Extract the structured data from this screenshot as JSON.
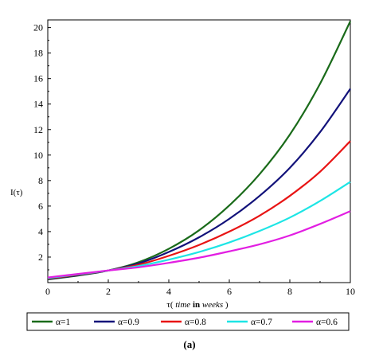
{
  "chart_data": {
    "type": "line",
    "ylabel": "I(τ)",
    "xlabel_parts": [
      "τ( ",
      "time",
      " in ",
      "weeks",
      " )"
    ],
    "xlim": [
      0,
      10
    ],
    "ylim": [
      0,
      20.6
    ],
    "xticks": [
      0,
      2,
      4,
      6,
      8,
      10
    ],
    "yticks": [
      2,
      4,
      6,
      8,
      10,
      12,
      14,
      16,
      18,
      20
    ],
    "grid": false,
    "legend_position": "bottom",
    "series": [
      {
        "name": "α=1",
        "color": "#1a6b1a",
        "x": [
          0,
          1,
          2,
          3,
          4,
          5,
          6,
          7,
          8,
          9,
          10
        ],
        "y": [
          0.25,
          0.55,
          0.95,
          1.6,
          2.65,
          4.1,
          6.05,
          8.5,
          11.6,
          15.6,
          20.5
        ]
      },
      {
        "name": "α=0.9",
        "color": "#12127a",
        "x": [
          0,
          1,
          2,
          3,
          4,
          5,
          6,
          7,
          8,
          9,
          10
        ],
        "y": [
          0.28,
          0.58,
          0.95,
          1.5,
          2.4,
          3.55,
          5.0,
          6.8,
          9.0,
          11.8,
          15.2
        ]
      },
      {
        "name": "α=0.8",
        "color": "#e81414",
        "x": [
          0,
          1,
          2,
          3,
          4,
          5,
          6,
          7,
          8,
          9,
          10
        ],
        "y": [
          0.32,
          0.62,
          0.95,
          1.4,
          2.1,
          2.95,
          4.0,
          5.25,
          6.8,
          8.7,
          11.1
        ]
      },
      {
        "name": "α=0.7",
        "color": "#1de5e5",
        "x": [
          0,
          1,
          2,
          3,
          4,
          5,
          6,
          7,
          8,
          9,
          10
        ],
        "y": [
          0.36,
          0.65,
          0.95,
          1.3,
          1.8,
          2.4,
          3.15,
          4.05,
          5.1,
          6.4,
          7.9
        ]
      },
      {
        "name": "α=0.6",
        "color": "#e21ee2",
        "x": [
          0,
          1,
          2,
          3,
          4,
          5,
          6,
          7,
          8,
          9,
          10
        ],
        "y": [
          0.4,
          0.68,
          0.95,
          1.2,
          1.55,
          1.95,
          2.45,
          3.0,
          3.7,
          4.6,
          5.6
        ]
      }
    ]
  },
  "caption": "(a)"
}
